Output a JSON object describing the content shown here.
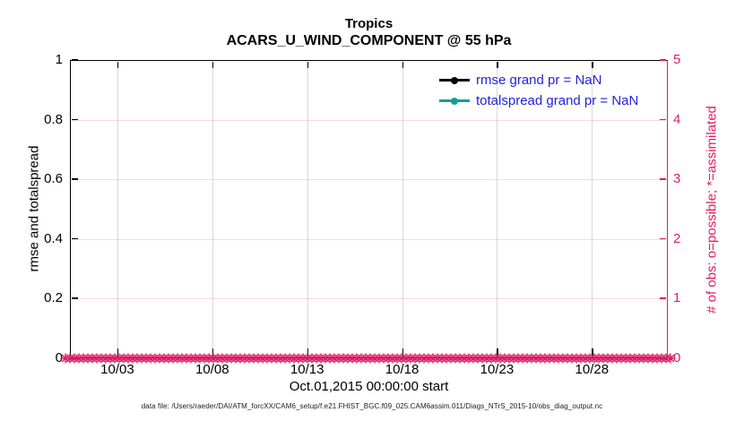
{
  "chart_data": {
    "type": "line",
    "title": "Tropics",
    "subtitle": "ACARS_U_WIND_COMPONENT @ 55 hPa",
    "xlabel": "Oct.01,2015 00:00:00 start",
    "ylabel_left": "rmse and totalspread",
    "ylabel_right": "# of obs: o=possible; *=assimilated",
    "footer": "data file: /Users/raeder/DAI/ATM_forcXX/CAM6_setup/f.e21.FHIST_BGC.f09_025.CAM6assim.011/Diags_NTrS_2015-10/obs_diag_output.nc",
    "x_axis": {
      "lim_days": [
        0.5,
        32
      ],
      "grid": true,
      "ticks": [
        {
          "day": 3,
          "label": "10/03"
        },
        {
          "day": 8,
          "label": "10/08"
        },
        {
          "day": 13,
          "label": "10/13"
        },
        {
          "day": 18,
          "label": "10/18"
        },
        {
          "day": 23,
          "label": "10/23"
        },
        {
          "day": 28,
          "label": "10/28"
        }
      ]
    },
    "y_axis_left": {
      "lim": [
        0,
        1
      ],
      "color": "#000000",
      "ticks": [
        {
          "v": 0,
          "label": "0"
        },
        {
          "v": 0.2,
          "label": "0.2"
        },
        {
          "v": 0.4,
          "label": "0.4"
        },
        {
          "v": 0.6,
          "label": "0.6"
        },
        {
          "v": 0.8,
          "label": "0.8"
        },
        {
          "v": 1,
          "label": "1"
        }
      ]
    },
    "y_axis_right": {
      "lim": [
        0,
        5
      ],
      "color": "#DF1D62",
      "ticks": [
        {
          "v": 0,
          "label": "0"
        },
        {
          "v": 1,
          "label": "1"
        },
        {
          "v": 2,
          "label": "2"
        },
        {
          "v": 3,
          "label": "3"
        },
        {
          "v": 4,
          "label": "4"
        },
        {
          "v": 5,
          "label": "5"
        }
      ]
    },
    "series": [
      {
        "name": "rmse",
        "legend_label": "rmse grand pr = NaN",
        "color": "#000000",
        "marker": "filled-circle",
        "grand_pr": "NaN",
        "values": null
      },
      {
        "name": "totalspread",
        "legend_label": "totalspread grand pr = NaN",
        "color": "#149E96",
        "marker": "filled-circle",
        "grand_pr": "NaN",
        "values": null
      }
    ],
    "legend": {
      "location": "northeast",
      "text_color": "#2222DD"
    },
    "obs_markers": {
      "symbol": "*",
      "y_value": 0,
      "color": "#DF1D62",
      "span_days": [
        0.5,
        32
      ]
    },
    "grid": {
      "vertical_color": "rgba(0,0,0,0.15)",
      "horizontal_color": "rgba(223,29,98,0.18)"
    }
  }
}
